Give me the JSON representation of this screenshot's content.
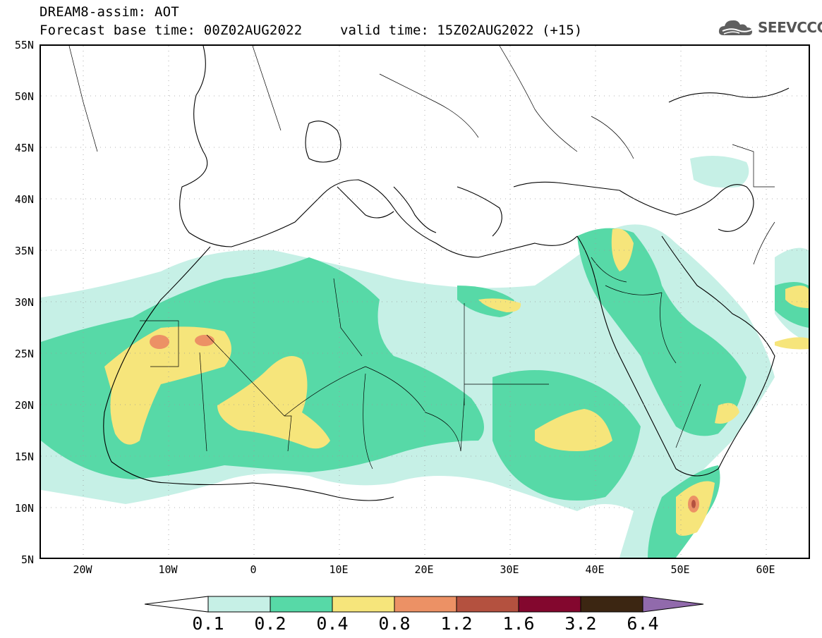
{
  "header": {
    "title_line1": "DREAM8-assim: AOT",
    "title_line2": "Forecast base time: 00Z02AUG2022",
    "valid_time": "valid time: 15Z02AUG2022 (+15)",
    "logo_text": "SEEVCCC"
  },
  "map": {
    "lat_labels": [
      "55N",
      "50N",
      "45N",
      "40N",
      "35N",
      "30N",
      "25N",
      "20N",
      "15N",
      "10N",
      "5N"
    ],
    "lon_labels": [
      "20W",
      "10W",
      "0",
      "10E",
      "20E",
      "30E",
      "40E",
      "50E",
      "60E"
    ],
    "field": "AOT"
  },
  "colorbar": {
    "levels": [
      "0.1",
      "0.2",
      "0.4",
      "0.8",
      "1.2",
      "1.6",
      "3.2",
      "6.4"
    ],
    "colors": [
      "#ffffff",
      "#c6f0e6",
      "#57d9a7",
      "#f6e57b",
      "#ec9165",
      "#b4513f",
      "#83072e",
      "#3c2612",
      "#916aac"
    ]
  }
}
